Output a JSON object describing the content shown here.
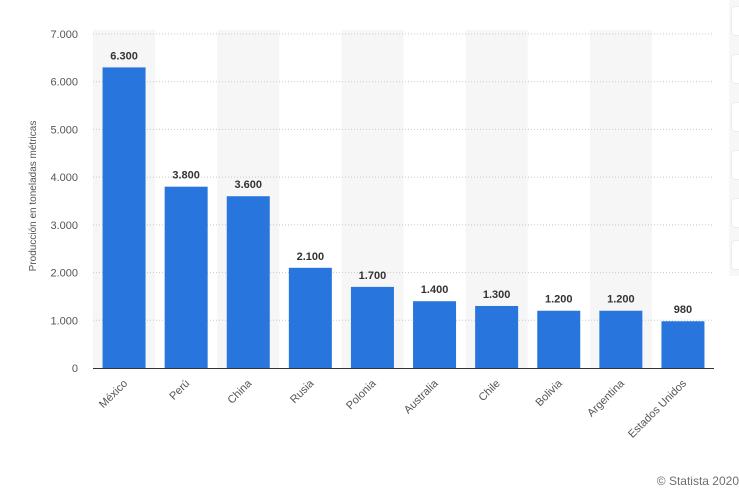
{
  "chart_data": {
    "type": "bar",
    "categories": [
      "México",
      "Perú",
      "China",
      "Rusia",
      "Polonia",
      "Australia",
      "Chile",
      "Bolivia",
      "Argentina",
      "Estados Unidos"
    ],
    "values": [
      6300,
      3800,
      3600,
      2100,
      1700,
      1400,
      1300,
      1200,
      1200,
      980
    ],
    "value_labels": [
      "6.300",
      "3.800",
      "3.600",
      "2.100",
      "1.700",
      "1.400",
      "1.300",
      "1.200",
      "1.200",
      "980"
    ],
    "ylabel": "Producción en toneladas métricas",
    "xlabel": "",
    "yticks": [
      0,
      1000,
      2000,
      3000,
      4000,
      5000,
      6000,
      7000
    ],
    "ytick_labels": [
      "0",
      "1.000",
      "2.000",
      "3.000",
      "4.000",
      "5.000",
      "6.000",
      "7.000"
    ],
    "ylim": [
      0,
      7000
    ],
    "grid": true,
    "bar_color": "#2876dd",
    "band_color": "#f6f6f6"
  },
  "credit": "© Statista 2020"
}
